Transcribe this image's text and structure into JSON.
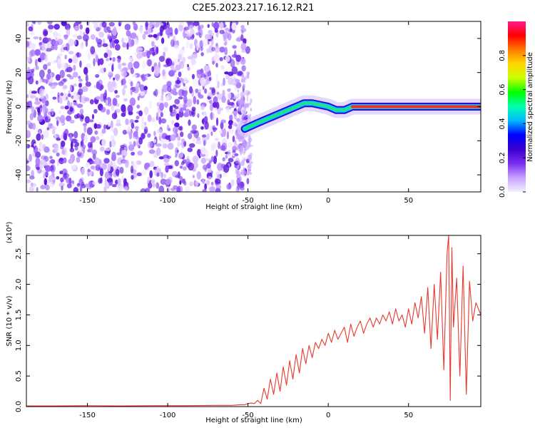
{
  "title": "C2E5.2023.217.16.12.R21",
  "colors": {
    "background": "#ffffff",
    "snr_line": "#e8392e",
    "cbar_stops": [
      "#f0f0ff",
      "#c8a0ff",
      "#7a2cf0",
      "#3a00d0",
      "#0000ff",
      "#00b8ff",
      "#00ffb0",
      "#00ff00",
      "#c8ff00",
      "#ffd800",
      "#ff7a00",
      "#ff0000",
      "#ff1a8c"
    ]
  },
  "chart_data": [
    {
      "type": "heatmap",
      "xlabel": "Height of straight line (km)",
      "ylabel": "Frequency (Hz)",
      "xlim": [
        -188,
        95
      ],
      "ylim": [
        -50,
        50
      ],
      "xticks": [
        -150,
        -100,
        -50,
        0,
        50
      ],
      "xtick_labels": [
        "-150",
        "-100",
        "-50",
        "0",
        "50"
      ],
      "yticks": [
        -40,
        -20,
        0,
        20,
        40
      ],
      "ytick_labels": [
        "-40",
        "-20",
        "0",
        "20",
        "40"
      ],
      "grid": false,
      "noise_region_x": [
        -188,
        -50
      ],
      "ridge": {
        "x": [
          -52,
          -45,
          -40,
          -35,
          -30,
          -25,
          -20,
          -15,
          -10,
          -5,
          0,
          5,
          10,
          15,
          20,
          30,
          40,
          50,
          60,
          70,
          80,
          90,
          95
        ],
        "y": [
          -13,
          -10,
          -8,
          -6,
          -4,
          -2,
          0,
          2,
          2,
          1,
          0,
          -2,
          -2,
          0,
          0,
          0,
          0,
          0,
          0,
          0,
          0,
          0,
          0
        ]
      },
      "colorbar": {
        "label": "Normalized spectral amplitude",
        "range": [
          0,
          1
        ],
        "ticks": [
          0.0,
          0.2,
          0.4,
          0.6,
          0.8
        ],
        "tick_labels": [
          "0.0",
          "0.2",
          "0.4",
          "0.6",
          "0.8"
        ]
      }
    },
    {
      "type": "line",
      "xlabel": "Height of straight line (km)",
      "ylabel": "SNR (10 * v/v)",
      "y_multiplier": "(x10⁴)",
      "xlim": [
        -188,
        95
      ],
      "ylim": [
        0,
        2.8
      ],
      "xticks": [
        -150,
        -100,
        -50,
        0,
        50
      ],
      "xtick_labels": [
        "-150",
        "-100",
        "-50",
        "0",
        "50"
      ],
      "yticks": [
        0.0,
        0.5,
        1.0,
        1.5,
        2.0,
        2.5
      ],
      "ytick_labels": [
        "0.0",
        "0.5",
        "1.0",
        "1.5",
        "2.0",
        "2.5"
      ],
      "grid": false,
      "series": [
        {
          "color": "#e8392e",
          "x": [
            -188,
            -170,
            -150,
            -130,
            -110,
            -90,
            -70,
            -60,
            -55,
            -52,
            -50,
            -48,
            -46,
            -44,
            -42,
            -40,
            -38,
            -36,
            -34,
            -32,
            -30,
            -28,
            -26,
            -24,
            -22,
            -20,
            -18,
            -16,
            -14,
            -12,
            -10,
            -8,
            -6,
            -4,
            -2,
            0,
            2,
            4,
            6,
            8,
            10,
            12,
            14,
            16,
            18,
            20,
            22,
            24,
            26,
            28,
            30,
            32,
            34,
            36,
            38,
            40,
            42,
            44,
            46,
            48,
            50,
            52,
            54,
            56,
            58,
            60,
            62,
            64,
            66,
            68,
            70,
            72,
            74,
            75,
            76,
            77,
            78,
            80,
            82,
            84,
            86,
            88,
            90,
            92,
            95
          ],
          "y": [
            0.01,
            0.01,
            0.015,
            0.01,
            0.015,
            0.015,
            0.02,
            0.02,
            0.03,
            0.03,
            0.05,
            0.06,
            0.05,
            0.1,
            0.05,
            0.3,
            0.12,
            0.45,
            0.2,
            0.55,
            0.25,
            0.65,
            0.35,
            0.75,
            0.45,
            0.85,
            0.55,
            0.95,
            0.7,
            1.0,
            0.8,
            1.05,
            0.95,
            1.1,
            1.0,
            1.2,
            1.05,
            1.25,
            1.1,
            1.2,
            1.3,
            1.05,
            1.35,
            1.15,
            1.3,
            1.4,
            1.2,
            1.35,
            1.45,
            1.3,
            1.45,
            1.35,
            1.5,
            1.4,
            1.55,
            1.35,
            1.6,
            1.4,
            1.5,
            1.3,
            1.6,
            1.35,
            1.7,
            1.45,
            1.8,
            1.2,
            1.95,
            0.95,
            2.0,
            1.1,
            2.2,
            0.6,
            2.5,
            2.8,
            0.1,
            2.6,
            1.3,
            2.1,
            0.5,
            2.3,
            0.2,
            2.05,
            1.4,
            1.7,
            1.5
          ]
        }
      ]
    }
  ]
}
